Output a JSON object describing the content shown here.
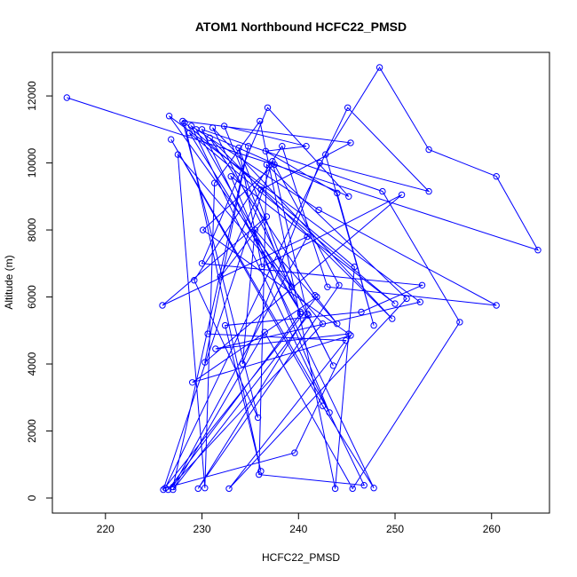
{
  "chart_data": {
    "type": "scatter",
    "title": "ATOM1 Northbound HCFC22_PMSD",
    "xlabel": "HCFC22_PMSD",
    "ylabel": "Altitude (m)",
    "xlim": [
      214.5,
      266
    ],
    "ylim": [
      -450,
      13300
    ],
    "xticks": [
      220,
      230,
      240,
      250,
      260
    ],
    "yticks": [
      0,
      2000,
      4000,
      6000,
      8000,
      10000,
      12000
    ],
    "grid": false,
    "legend": "none",
    "style": "points connected by lines",
    "color": "#0000ff",
    "series": [
      {
        "x": [
          216.0,
          264.8,
          260.5,
          253.5,
          248.4,
          242.8,
          247.8,
          244.0,
          236.6,
          240.8,
          232.3,
          240.2,
          226.5,
          242.5,
          227.5,
          230.3,
          231.3,
          236.0,
          243.8,
          245.8,
          228.2,
          236.1,
          232.4,
          246.5,
          252.8,
          230.0,
          236.8,
          245.2,
          229.4,
          240.2,
          228.7,
          250.0,
          233.0,
          243.2,
          226.8,
          242.5,
          247.8,
          230.0,
          248.7,
          256.7,
          245.6,
          236.5,
          227.0,
          241.0,
          243.6,
          231.1,
          249.7,
          230.8,
          241.7,
          244.0,
          235.5,
          234.2,
          242.2,
          253.5,
          245.1,
          226.2,
          239.6,
          245.4,
          229.0,
          241.9,
          226.0,
          237.3,
          240.9,
          229.6,
          244.2,
          237.5,
          230.1,
          245.2,
          231.4,
          252.6,
          226.6,
          239.3,
          233.8,
          236.2,
          250.7,
          230.3,
          234.8,
          227.0,
          240.9,
          225.9,
          236.7,
          231.9,
          236.1,
          245.4,
          228.0,
          235.8,
          229.2,
          238.3,
          243.0,
          260.5,
          242.1,
          228.9,
          246.8,
          235.9,
          236.7,
          251.2,
          232.8,
          244.9,
          230.6
        ],
        "y": [
          11950,
          7400,
          9600,
          10400,
          12850,
          10250,
          5150,
          9100,
          10350,
          10500,
          11100,
          5500,
          250,
          5200,
          10250,
          300,
          9400,
          11250,
          280,
          6900,
          11200,
          800,
          5150,
          5550,
          6350,
          7000,
          11650,
          9000,
          11000,
          5550,
          10900,
          5800,
          9600,
          2550,
          10700,
          2750,
          300,
          11000,
          9150,
          5250,
          280,
          4950,
          250,
          5450,
          3950,
          11050,
          5350,
          10750,
          6050,
          5200,
          8000,
          4000,
          10000,
          9150,
          11650,
          300,
          1350,
          4850,
          3450,
          6000,
          250,
          10050,
          5500,
          280,
          6350,
          9950,
          8000,
          4900,
          4450,
          5850,
          11400,
          6300,
          10450,
          6900,
          9050,
          4050,
          10500,
          330,
          7800,
          5750,
          8400,
          6600,
          9200,
          10600,
          11250,
          2400,
          6500,
          10500,
          6300,
          5750,
          8600,
          11100,
          380,
          700,
          9950,
          5950,
          280,
          4700,
          4900
        ]
      }
    ]
  }
}
